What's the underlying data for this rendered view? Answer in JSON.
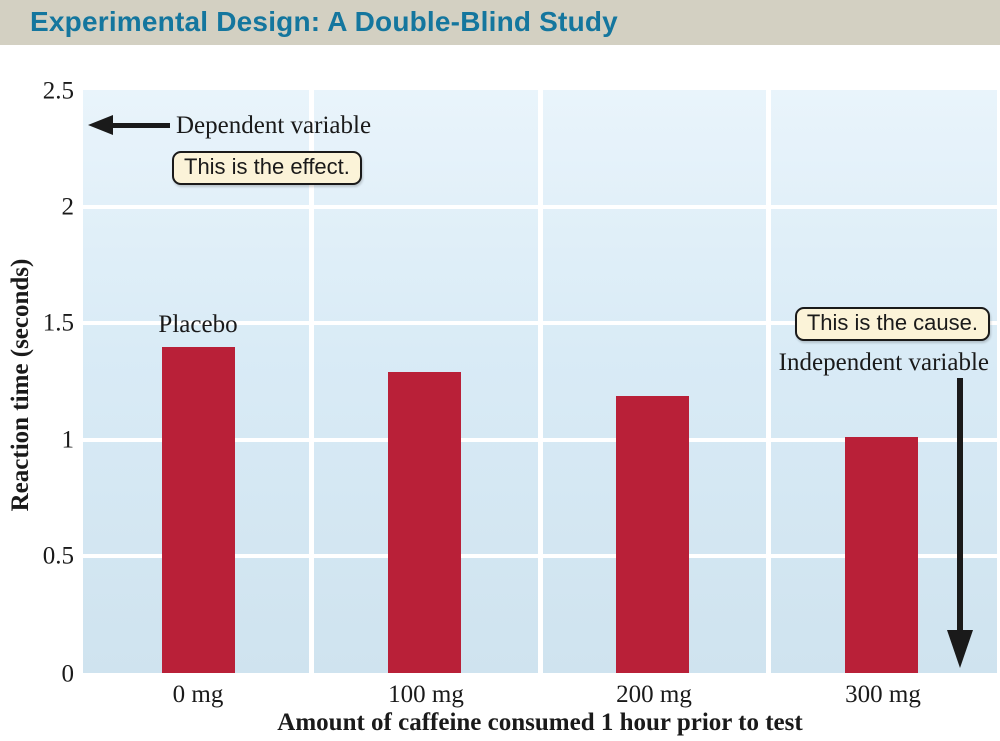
{
  "header": {
    "title": "Experimental Design: A Double-Blind Study",
    "title_color": "#14769e",
    "bg_color": "#d3d0c2"
  },
  "chart_data": {
    "type": "bar",
    "title": "Experimental Design: A Double-Blind Study",
    "categories": [
      "0 mg",
      "100 mg",
      "200 mg",
      "300 mg"
    ],
    "values": [
      1.4,
      1.29,
      1.19,
      1.01
    ],
    "xlabel": "Amount of caffeine consumed 1 hour prior to test",
    "ylabel": "Reaction time (seconds)",
    "ylim": [
      0,
      2.5
    ],
    "ytick_labels": [
      "2.5",
      "2",
      "1.5",
      "1",
      "0.5",
      "0"
    ],
    "ytick_values": [
      2.5,
      2,
      1.5,
      1,
      0.5,
      0
    ],
    "grid": true,
    "legend_position": "none",
    "bar_color": "#b92038",
    "plot_bg_top": "#e9f4fb",
    "plot_bg_bottom": "#cfe3ef",
    "gridline_color": "#ffffff"
  },
  "annotations": {
    "dependent_label": "Dependent variable",
    "effect_callout": "This is the effect.",
    "placebo_label": "Placebo",
    "cause_callout": "This is the cause.",
    "independent_label": "Independent variable",
    "callout_bg": "#fbf3d8",
    "arrow_color": "#1a1a1a"
  }
}
